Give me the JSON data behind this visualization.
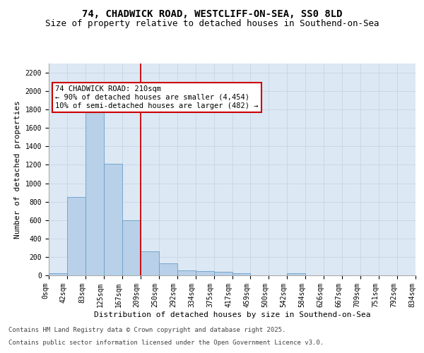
{
  "title_line1": "74, CHADWICK ROAD, WESTCLIFF-ON-SEA, SS0 8LD",
  "title_line2": "Size of property relative to detached houses in Southend-on-Sea",
  "xlabel": "Distribution of detached houses by size in Southend-on-Sea",
  "ylabel": "Number of detached properties",
  "annotation_title": "74 CHADWICK ROAD: 210sqm",
  "annotation_line2": "← 90% of detached houses are smaller (4,454)",
  "annotation_line3": "10% of semi-detached houses are larger (482) →",
  "footnote1": "Contains HM Land Registry data © Crown copyright and database right 2025.",
  "footnote2": "Contains public sector information licensed under the Open Government Licence v3.0.",
  "bar_values": [
    25,
    850,
    1820,
    1210,
    600,
    260,
    130,
    50,
    45,
    35,
    20,
    0,
    0,
    20,
    0,
    0,
    0,
    0,
    0,
    0
  ],
  "bar_labels": [
    "0sqm",
    "42sqm",
    "83sqm",
    "125sqm",
    "167sqm",
    "209sqm",
    "250sqm",
    "292sqm",
    "334sqm",
    "375sqm",
    "417sqm",
    "459sqm",
    "500sqm",
    "542sqm",
    "584sqm",
    "626sqm",
    "667sqm",
    "709sqm",
    "751sqm",
    "792sqm",
    "834sqm"
  ],
  "bar_color": "#b8d0e8",
  "bar_edgecolor": "#6aa0c8",
  "bar_linewidth": 0.6,
  "vline_index": 5,
  "vline_color": "#cc0000",
  "grid_color": "#c8d4e4",
  "background_color": "#dce8f4",
  "ylim": [
    0,
    2300
  ],
  "yticks": [
    0,
    200,
    400,
    600,
    800,
    1000,
    1200,
    1400,
    1600,
    1800,
    2000,
    2200
  ],
  "annotation_box_color": "#cc0000",
  "title_fontsize": 10,
  "subtitle_fontsize": 9,
  "axis_label_fontsize": 8,
  "tick_fontsize": 7,
  "annotation_fontsize": 7.5,
  "footnote_fontsize": 6.5
}
